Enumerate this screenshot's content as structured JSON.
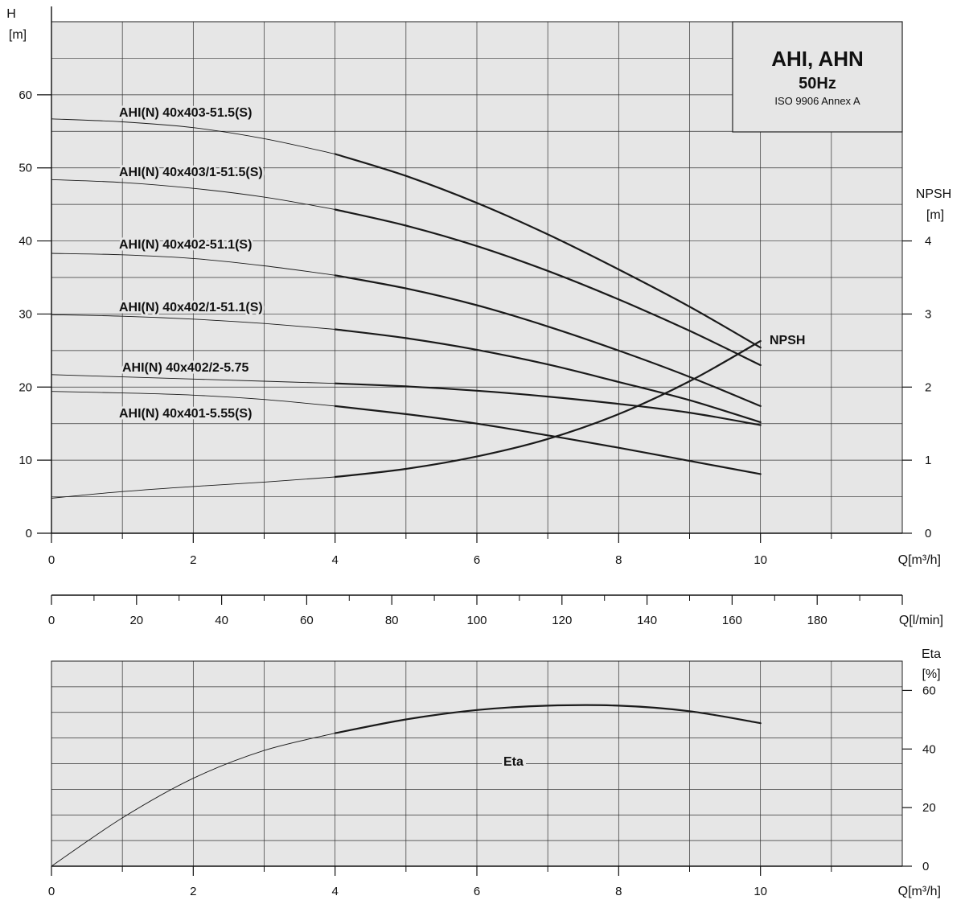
{
  "chart_data": [
    {
      "type": "line",
      "panel": "head-npsh",
      "xlabel": "Q[m³/h]",
      "x_ticks": [
        "0",
        "2",
        "4",
        "6",
        "8",
        "10"
      ],
      "xlim": [
        0,
        12
      ],
      "ylabel_top": "H",
      "ylabel_unit": "[m]",
      "ylim": [
        0,
        70
      ],
      "y_ticks": [
        "0",
        "10",
        "20",
        "30",
        "40",
        "50",
        "60"
      ],
      "y2label_top": "NPSH",
      "y2label_unit": "[m]",
      "y2lim": [
        0,
        7
      ],
      "y2_ticks": [
        "0",
        "1",
        "2",
        "3",
        "4"
      ],
      "grid": true,
      "legend_box": {
        "title": "AHI, AHN",
        "frequency": "50Hz",
        "standard": "ISO 9906 Annex A",
        "placement": "top-right"
      },
      "series": [
        {
          "name": "AHI(N) 40x403-51.5(S)",
          "axis": "left",
          "x": [
            0,
            1,
            2,
            3,
            4,
            5,
            6,
            7,
            8,
            9,
            10
          ],
          "y": [
            56.7,
            56.3,
            55.5,
            54.0,
            51.9,
            48.9,
            45.2,
            40.9,
            36.1,
            31.0,
            25.4
          ]
        },
        {
          "name": "AHI(N) 40x403/1-51.5(S)",
          "axis": "left",
          "x": [
            0,
            1,
            2,
            3,
            4,
            5,
            6,
            7,
            8,
            9,
            10
          ],
          "y": [
            48.4,
            48.0,
            47.2,
            46.0,
            44.3,
            42.1,
            39.3,
            35.9,
            32.0,
            27.7,
            23.0
          ]
        },
        {
          "name": "AHI(N) 40x402-51.1(S)",
          "axis": "left",
          "x": [
            0,
            1,
            2,
            3,
            4,
            5,
            6,
            7,
            8,
            9,
            10
          ],
          "y": [
            38.3,
            38.1,
            37.6,
            36.6,
            35.3,
            33.5,
            31.2,
            28.3,
            25.0,
            21.4,
            17.4
          ]
        },
        {
          "name": "AHI(N) 40x402/1-51.1(S)",
          "axis": "left",
          "x": [
            0,
            1,
            2,
            3,
            4,
            5,
            6,
            7,
            8,
            9,
            10
          ],
          "y": [
            29.9,
            29.7,
            29.3,
            28.7,
            27.9,
            26.7,
            25.1,
            23.1,
            20.7,
            18.2,
            15.2
          ]
        },
        {
          "name": "AHI(N) 40x402/2-5.75",
          "axis": "left",
          "x": [
            0,
            1,
            2,
            3,
            4,
            5,
            6,
            7,
            8,
            9,
            10
          ],
          "y": [
            21.7,
            21.4,
            21.1,
            20.8,
            20.5,
            20.1,
            19.5,
            18.7,
            17.7,
            16.5,
            14.8
          ]
        },
        {
          "name": "AHI(N) 40x401-5.55(S)",
          "axis": "left",
          "x": [
            0,
            1,
            2,
            3,
            4,
            5,
            6,
            7,
            8,
            9,
            10
          ],
          "y": [
            19.4,
            19.2,
            18.9,
            18.3,
            17.4,
            16.3,
            15.0,
            13.4,
            11.7,
            9.9,
            8.1
          ]
        },
        {
          "name": "NPSH",
          "axis": "right",
          "x": [
            0,
            1,
            2,
            3,
            4,
            5,
            6,
            7,
            8,
            9,
            10
          ],
          "y": [
            0.48,
            0.57,
            0.64,
            0.7,
            0.77,
            0.88,
            1.05,
            1.29,
            1.63,
            2.08,
            2.63
          ]
        }
      ]
    },
    {
      "type": "axis",
      "panel": "flow-litres",
      "xlabel": "Q[l/min]",
      "x_ticks": [
        "0",
        "20",
        "40",
        "60",
        "80",
        "100",
        "120",
        "140",
        "160",
        "180"
      ],
      "xlim": [
        0,
        200
      ]
    },
    {
      "type": "line",
      "panel": "efficiency",
      "xlabel": "Q[m³/h]",
      "x_ticks": [
        "0",
        "2",
        "4",
        "6",
        "8",
        "10"
      ],
      "xlim": [
        0,
        12
      ],
      "y2label_top": "Eta",
      "y2label_unit": "[%]",
      "y2lim": [
        0,
        70
      ],
      "y2_ticks": [
        "0",
        "20",
        "40",
        "60"
      ],
      "grid": true,
      "series": [
        {
          "name": "Eta",
          "axis": "right",
          "x": [
            0,
            1,
            2,
            3,
            4,
            5,
            6,
            7,
            8,
            9,
            10
          ],
          "y": [
            0,
            16.5,
            30.0,
            39.5,
            45.4,
            50.1,
            53.3,
            54.8,
            54.8,
            52.9,
            48.8
          ]
        }
      ]
    }
  ]
}
